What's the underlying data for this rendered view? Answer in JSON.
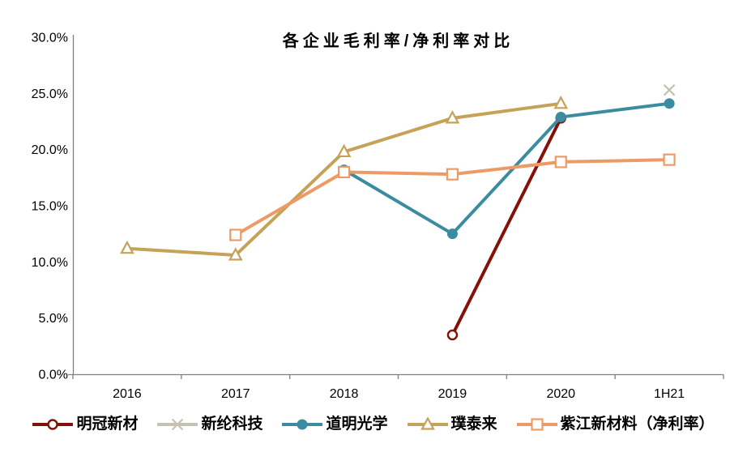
{
  "chart_data": {
    "type": "line",
    "title": "各企业毛利率/净利率对比",
    "xlabel": "",
    "ylabel": "",
    "categories": [
      "2016",
      "2017",
      "2018",
      "2019",
      "2020",
      "1H21"
    ],
    "y_ticks": [
      "30.0%",
      "25.0%",
      "20.0%",
      "15.0%",
      "10.0%",
      "5.0%",
      "0.0%"
    ],
    "ylim": [
      0,
      30
    ],
    "grid": false,
    "legend_position": "bottom",
    "axis_color": "#7f7f7f",
    "background_color": "#ffffff",
    "series": [
      {
        "id": "mingguan-xincai",
        "name": "明冠新材",
        "color": "#821108",
        "marker": "open-circle",
        "values": [
          null,
          null,
          null,
          3.5,
          22.8,
          null
        ]
      },
      {
        "id": "xinlun-keji",
        "name": "新纶科技",
        "color": "#c5c2b3",
        "marker": "x",
        "values": [
          null,
          null,
          null,
          null,
          null,
          25.3
        ]
      },
      {
        "id": "daoming-guangxue",
        "name": "道明光学",
        "color": "#3c8ca0",
        "marker": "filled-circle",
        "values": [
          null,
          null,
          18.2,
          12.5,
          22.9,
          24.1
        ]
      },
      {
        "id": "putailai",
        "name": "璞泰来",
        "color": "#c5a258",
        "marker": "open-triangle",
        "values": [
          11.2,
          10.6,
          19.8,
          22.8,
          24.1,
          null
        ]
      },
      {
        "id": "zijiang-xincailiao",
        "name": "紫江新材料（净利率）",
        "color": "#ec9b66",
        "marker": "open-square",
        "values": [
          null,
          12.4,
          18.0,
          17.8,
          18.9,
          19.1
        ]
      }
    ]
  }
}
